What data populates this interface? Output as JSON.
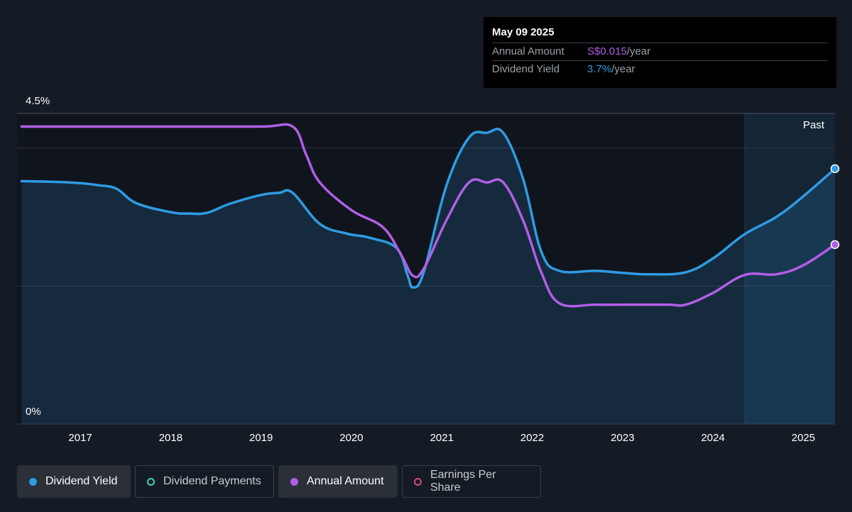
{
  "tooltip": {
    "date": "May 09 2025",
    "rows": [
      {
        "label": "Annual Amount",
        "value": "S$0.015",
        "unit": "/year"
      },
      {
        "label": "Dividend Yield",
        "value": "3.7%",
        "unit": "/year"
      }
    ]
  },
  "past_label": "Past",
  "legend": [
    {
      "label": "Dividend Yield",
      "color": "#2f9be3",
      "style": "filled",
      "active": true
    },
    {
      "label": "Dividend Payments",
      "color": "#3fd1b4",
      "style": "hollow",
      "active": false
    },
    {
      "label": "Annual Amount",
      "color": "#b15ee6",
      "style": "filled",
      "active": true
    },
    {
      "label": "Earnings Per Share",
      "color": "#e0457b",
      "style": "hollow",
      "active": false
    }
  ],
  "chart_data": {
    "type": "line",
    "y_tick_labels": [
      "4.5%",
      "0%"
    ],
    "ylim": [
      0,
      4.5
    ],
    "xlim": [
      2016.3,
      2025.35
    ],
    "x_ticks": [
      2017,
      2018,
      2019,
      2020,
      2021,
      2022,
      2023,
      2024,
      2025
    ],
    "forecast_start": 2024.35,
    "series": [
      {
        "name": "Dividend Yield",
        "color": "#2f9be3",
        "filled": true,
        "x": [
          2016.35,
          2016.7,
          2017.0,
          2017.2,
          2017.4,
          2017.62,
          2018.0,
          2018.2,
          2018.4,
          2018.65,
          2019.0,
          2019.2,
          2019.35,
          2019.65,
          2019.95,
          2020.2,
          2020.5,
          2020.62,
          2020.68,
          2020.8,
          2021.05,
          2021.3,
          2021.5,
          2021.68,
          2021.9,
          2022.1,
          2022.3,
          2022.7,
          2023.0,
          2023.3,
          2023.7,
          2024.0,
          2024.35,
          2024.7,
          2025.0,
          2025.35
        ],
        "y": [
          3.52,
          3.51,
          3.49,
          3.46,
          3.41,
          3.2,
          3.07,
          3.05,
          3.06,
          3.19,
          3.32,
          3.35,
          3.35,
          2.9,
          2.76,
          2.7,
          2.55,
          2.16,
          1.98,
          2.2,
          3.45,
          4.15,
          4.22,
          4.22,
          3.55,
          2.5,
          2.22,
          2.22,
          2.19,
          2.17,
          2.2,
          2.4,
          2.75,
          3.0,
          3.3,
          3.7
        ]
      },
      {
        "name": "Annual Amount",
        "color": "#b15ee6",
        "filled": false,
        "x": [
          2016.35,
          2017.0,
          2018.0,
          2019.0,
          2019.35,
          2019.5,
          2019.65,
          2020.0,
          2020.35,
          2020.55,
          2020.68,
          2020.8,
          2021.05,
          2021.3,
          2021.5,
          2021.68,
          2021.9,
          2022.1,
          2022.3,
          2022.7,
          2023.0,
          2023.5,
          2023.7,
          2024.0,
          2024.35,
          2024.7,
          2025.0,
          2025.35
        ],
        "y": [
          4.31,
          4.31,
          4.31,
          4.31,
          4.31,
          3.9,
          3.5,
          3.1,
          2.85,
          2.45,
          2.15,
          2.25,
          2.95,
          3.5,
          3.5,
          3.5,
          2.95,
          2.2,
          1.75,
          1.73,
          1.73,
          1.73,
          1.73,
          1.9,
          2.16,
          2.17,
          2.3,
          2.6
        ]
      }
    ]
  }
}
